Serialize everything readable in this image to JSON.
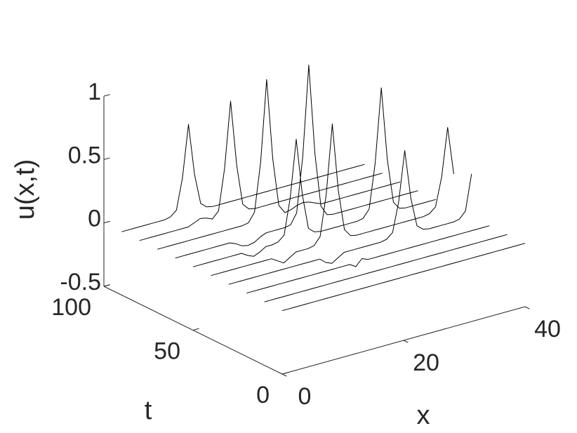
{
  "chart_data": {
    "type": "waterfall3d",
    "color": "#000000",
    "zlabel": "u(x,t)",
    "xlabel": "x",
    "ylabel": "t",
    "xlim": [
      0,
      40
    ],
    "xticks": [
      0,
      20,
      40
    ],
    "ylim": [
      0,
      100
    ],
    "yticks": [
      0,
      50,
      100
    ],
    "zlim": [
      -0.5,
      1
    ],
    "zticks": [
      -0.5,
      0,
      0.5,
      1
    ],
    "x": [
      0,
      1,
      2,
      3,
      4,
      5,
      6,
      7,
      8,
      9,
      10,
      11,
      12,
      13,
      14,
      15,
      16,
      17,
      18,
      19,
      20,
      21,
      22,
      23,
      24,
      25,
      26,
      27,
      28,
      29,
      30,
      31,
      32,
      33,
      34,
      35,
      36,
      37,
      38,
      39,
      40
    ],
    "lines": [
      {
        "t": 0,
        "values": [
          0,
          0,
          0,
          0,
          0,
          0,
          0,
          0,
          0,
          0,
          0,
          0,
          0,
          0,
          0,
          0,
          0,
          0,
          0,
          0,
          0,
          0,
          0,
          0,
          0,
          0,
          0,
          0,
          0,
          0,
          0,
          0,
          0,
          0,
          0,
          0,
          0,
          0,
          0,
          0,
          0
        ]
      },
      {
        "t": 10,
        "values": [
          0,
          0,
          0,
          0,
          0,
          0,
          0,
          0,
          0,
          0,
          0,
          0,
          0,
          0,
          0,
          0,
          0,
          0,
          0,
          0,
          0,
          0,
          0,
          0,
          0,
          0,
          0,
          0,
          0,
          0,
          0,
          0,
          0,
          0,
          0,
          0,
          0,
          0,
          0,
          0,
          0
        ]
      },
      {
        "t": 20,
        "values": [
          0,
          0,
          0,
          0,
          0,
          0,
          0,
          0,
          0,
          0,
          0,
          0,
          0,
          0,
          0,
          0,
          0,
          0,
          -0.03,
          0.02,
          0,
          0,
          0,
          0,
          0,
          0,
          0,
          0,
          0,
          0,
          0,
          0,
          0,
          0,
          0,
          0,
          0,
          0,
          0,
          0,
          0
        ]
      },
      {
        "t": 30,
        "values": [
          0,
          0,
          0,
          0,
          0,
          0,
          0,
          0,
          0,
          0,
          0,
          0,
          0,
          0,
          0,
          0,
          -0.04,
          -0.06,
          -0.03,
          0,
          0,
          0,
          0,
          0,
          0,
          0,
          0.01,
          0.05,
          0.28,
          0.67,
          0.28,
          0.05,
          0.01,
          0,
          0,
          0,
          0,
          0,
          0.01,
          0.06,
          0.34
        ]
      },
      {
        "t": 40,
        "values": [
          0,
          0,
          0,
          0,
          0,
          0,
          0,
          0,
          0,
          0,
          0,
          -0.03,
          -0.06,
          -0.03,
          0,
          0,
          0,
          0.01,
          0.07,
          0.39,
          0.93,
          0.39,
          0.07,
          0.01,
          0,
          0,
          0,
          0,
          0,
          0,
          0,
          0,
          0,
          0,
          0,
          0,
          0.01,
          0.05,
          0.27,
          0.65,
          0.27
        ]
      },
      {
        "t": 50,
        "values": [
          0,
          0,
          0,
          0,
          0,
          0,
          0,
          0,
          0,
          -0.03,
          -0.05,
          -0.03,
          0,
          0,
          0.01,
          0.05,
          0.33,
          0.78,
          0.33,
          0.05,
          0.01,
          0,
          0,
          0,
          0,
          0,
          0,
          0,
          0.01,
          0.07,
          0.42,
          1,
          0.42,
          0.07,
          0.01,
          0,
          0,
          0,
          0,
          0,
          0
        ]
      },
      {
        "t": 60,
        "values": [
          0,
          0,
          0,
          0,
          0,
          0,
          0,
          0,
          0,
          0,
          -0.02,
          -0.05,
          -0.06,
          -0.05,
          -0.02,
          0,
          0,
          0,
          0,
          0.01,
          0.09,
          0.52,
          1.23,
          0.52,
          0.09,
          0.01,
          0,
          0,
          0,
          0,
          0,
          0,
          0,
          0,
          0,
          0,
          0,
          0,
          0,
          0,
          0
        ]
      },
      {
        "t": 70,
        "values": [
          0,
          0,
          0,
          0,
          0,
          0,
          0,
          0,
          0,
          0,
          0,
          0,
          0,
          0,
          0,
          0.01,
          0.08,
          0.46,
          1.1,
          0.46,
          0.08,
          0.01,
          0.02,
          0.04,
          0.05,
          0.04,
          0.02,
          0,
          0,
          0,
          0,
          0,
          0,
          0,
          0,
          0,
          0,
          0,
          0,
          0,
          0
        ]
      },
      {
        "t": 80,
        "values": [
          0,
          0,
          0,
          0,
          0,
          0,
          0,
          0,
          0,
          0.02,
          0.04,
          0.03,
          0.01,
          0.06,
          0.38,
          0.9,
          0.38,
          0.06,
          0.01,
          0,
          0,
          0,
          0,
          0,
          0,
          0,
          0,
          0,
          0,
          0,
          0,
          0,
          0,
          0,
          0,
          0,
          0,
          0,
          0,
          0,
          0
        ]
      },
      {
        "t": 90,
        "values": [
          0,
          0,
          0,
          0,
          0,
          0,
          0,
          0,
          0.01,
          0.05,
          0.29,
          0.7,
          0.29,
          0.05,
          0.01,
          0,
          0,
          0,
          0,
          0,
          0,
          0,
          0,
          0,
          0,
          0,
          0,
          0,
          0,
          0,
          0,
          0,
          0,
          0,
          0,
          0,
          0,
          0,
          0,
          0,
          0
        ]
      }
    ]
  }
}
